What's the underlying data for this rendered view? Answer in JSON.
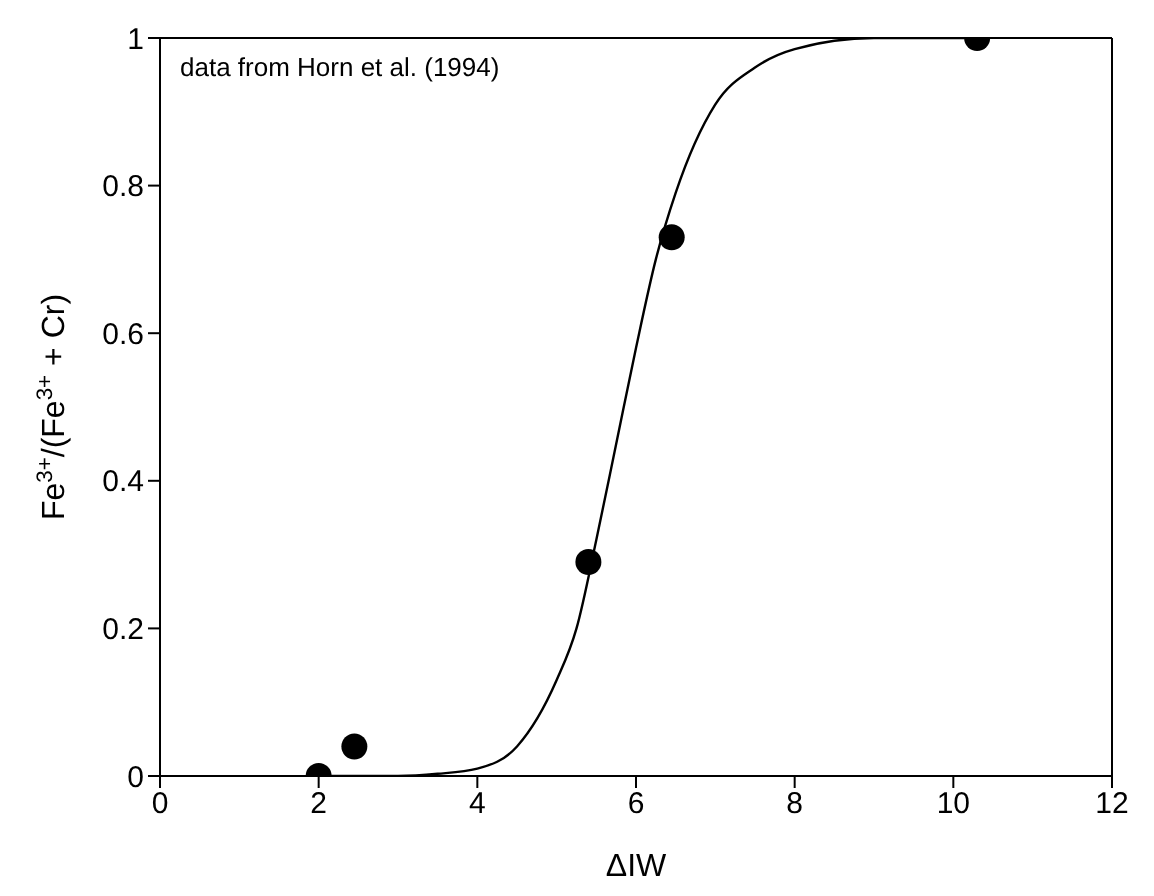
{
  "chart_data": {
    "type": "scatter",
    "xlabel": "ΔIW",
    "ylabel": "Fe$^{3+}$/(Fe$^{3+}$ + Cr)",
    "annotations": [
      "data from Horn et al. (1994)"
    ],
    "xlim": [
      0,
      12
    ],
    "xticks": [
      0,
      2,
      4,
      6,
      8,
      10,
      12
    ],
    "ylim": [
      0,
      1
    ],
    "yticks": [
      0,
      0.2,
      0.4,
      0.6,
      0.8,
      1
    ],
    "series": [
      {
        "type": "line",
        "color": "#000000",
        "marker": "none",
        "x": [
          2,
          3,
          3.5,
          4,
          4.5,
          5,
          5.25,
          5.5,
          5.75,
          6,
          6.25,
          6.5,
          7,
          7.5,
          8,
          9,
          10.3
        ],
        "values": [
          0,
          0,
          0.003,
          0.01,
          0.04,
          0.13,
          0.2,
          0.32,
          0.45,
          0.58,
          0.7,
          0.79,
          0.91,
          0.96,
          0.985,
          1,
          1
        ]
      },
      {
        "color": "#000000",
        "marker": "circle",
        "x": [
          2,
          2.45,
          5.4,
          6.45,
          10.3
        ],
        "values": [
          0,
          0.04,
          0.29,
          0.73,
          1
        ]
      }
    ]
  }
}
